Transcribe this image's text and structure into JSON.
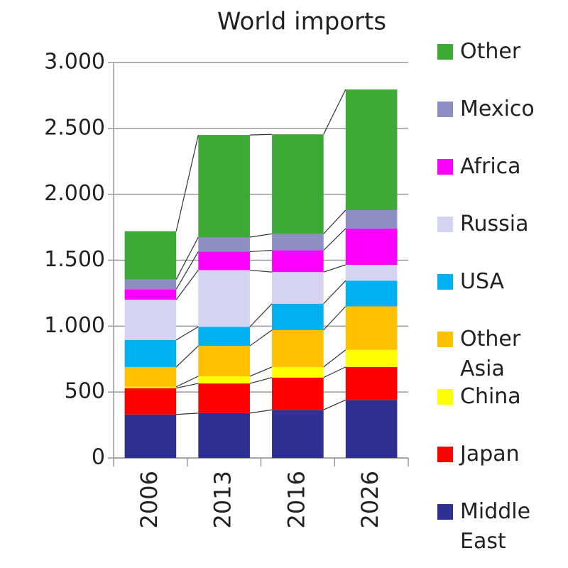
{
  "chart_data": {
    "type": "stacked_bar",
    "title": "World imports",
    "categories": [
      "2006",
      "2013",
      "2016",
      "2026"
    ],
    "series": [
      {
        "name": "Middle East",
        "color": "#2e3192",
        "values": [
          330,
          340,
          365,
          440
        ]
      },
      {
        "name": "Japan",
        "color": "#ff0000",
        "values": [
          200,
          225,
          245,
          250
        ]
      },
      {
        "name": "China",
        "color": "#ffff00",
        "values": [
          10,
          55,
          80,
          130
        ]
      },
      {
        "name": "Other Asia",
        "color": "#ffc000",
        "values": [
          150,
          230,
          280,
          330
        ]
      },
      {
        "name": "USA",
        "color": "#00b0f0",
        "values": [
          205,
          145,
          200,
          195
        ]
      },
      {
        "name": "Russia",
        "color": "#d3d3f2",
        "values": [
          305,
          430,
          240,
          120
        ]
      },
      {
        "name": "Africa",
        "color": "#ff00ff",
        "values": [
          80,
          140,
          165,
          275
        ]
      },
      {
        "name": "Mexico",
        "color": "#8e8ec2",
        "values": [
          75,
          110,
          125,
          140
        ]
      },
      {
        "name": "Other",
        "color": "#3daa35",
        "values": [
          365,
          775,
          755,
          915
        ]
      }
    ],
    "ylim": [
      0,
      3000
    ],
    "yticks": [
      0,
      500,
      {
        "value": 1000,
        "label": "1.000"
      },
      {
        "value": 1500,
        "label": "1.500"
      },
      {
        "value": 2000,
        "label": "2.000"
      },
      {
        "value": 2500,
        "label": "2.500"
      },
      {
        "value": 3000,
        "label": "3.000"
      }
    ],
    "grid": true
  }
}
